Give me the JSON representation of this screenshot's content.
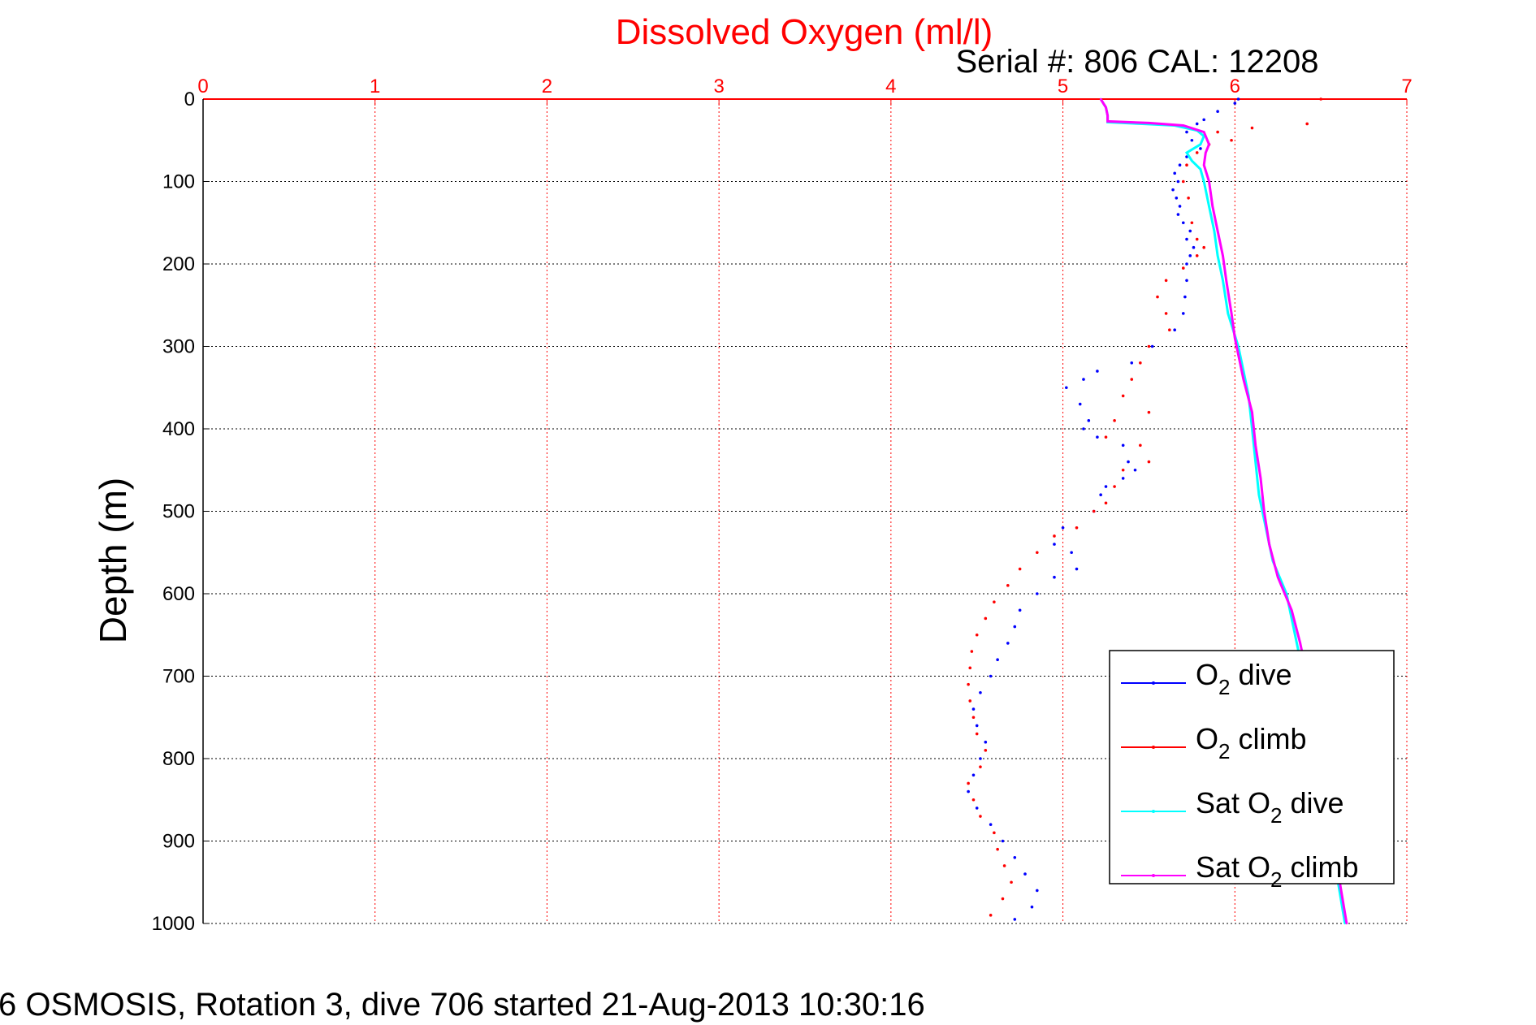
{
  "chart_data": {
    "type": "scatter",
    "title": "Dissolved Oxygen (ml/l)",
    "subtitle": "Serial #: 806  CAL: 12208",
    "xlabel": "",
    "ylabel": "Depth (m)",
    "xlim": [
      0,
      7
    ],
    "ylim": [
      0,
      1000
    ],
    "y_reversed": true,
    "x_axis_position": "top",
    "x_ticks": [
      "0",
      "1",
      "2",
      "3",
      "4",
      "5",
      "6",
      "7"
    ],
    "y_ticks": [
      "0",
      "100",
      "200",
      "300",
      "400",
      "500",
      "600",
      "700",
      "800",
      "900",
      "1000"
    ],
    "grid": true,
    "legend_position": "bottom-right",
    "footer": "6 OSMOSIS, Rotation 3, dive 706 started 21-Aug-2013 10:30:16",
    "colors": {
      "title": "#ff0000",
      "x_ticks": "#ff0000",
      "grid_x": "#ff0000",
      "grid_y": "#000000"
    },
    "series": [
      {
        "name": "O2 dive",
        "legend_label": "O",
        "legend_sub": "2",
        "legend_suffix": " dive",
        "color": "#0000ff",
        "style": "points",
        "points": [
          [
            6.02,
            0
          ],
          [
            6.0,
            5
          ],
          [
            5.9,
            15
          ],
          [
            5.82,
            25
          ],
          [
            5.78,
            30
          ],
          [
            5.72,
            40
          ],
          [
            5.75,
            50
          ],
          [
            5.8,
            60
          ],
          [
            5.72,
            70
          ],
          [
            5.68,
            80
          ],
          [
            5.65,
            90
          ],
          [
            5.67,
            100
          ],
          [
            5.64,
            110
          ],
          [
            5.66,
            120
          ],
          [
            5.68,
            130
          ],
          [
            5.67,
            140
          ],
          [
            5.7,
            150
          ],
          [
            5.74,
            160
          ],
          [
            5.72,
            170
          ],
          [
            5.76,
            180
          ],
          [
            5.74,
            190
          ],
          [
            5.72,
            200
          ],
          [
            5.72,
            220
          ],
          [
            5.71,
            240
          ],
          [
            5.7,
            260
          ],
          [
            5.65,
            280
          ],
          [
            5.52,
            300
          ],
          [
            5.4,
            320
          ],
          [
            5.2,
            330
          ],
          [
            5.12,
            340
          ],
          [
            5.02,
            350
          ],
          [
            5.1,
            370
          ],
          [
            5.15,
            390
          ],
          [
            5.12,
            400
          ],
          [
            5.2,
            410
          ],
          [
            5.35,
            420
          ],
          [
            5.38,
            440
          ],
          [
            5.42,
            450
          ],
          [
            5.35,
            460
          ],
          [
            5.25,
            470
          ],
          [
            5.22,
            480
          ],
          [
            5.18,
            500
          ],
          [
            5.0,
            520
          ],
          [
            4.95,
            540
          ],
          [
            5.05,
            550
          ],
          [
            5.08,
            570
          ],
          [
            4.95,
            580
          ],
          [
            4.85,
            600
          ],
          [
            4.75,
            620
          ],
          [
            4.72,
            640
          ],
          [
            4.68,
            660
          ],
          [
            4.62,
            680
          ],
          [
            4.58,
            700
          ],
          [
            4.52,
            720
          ],
          [
            4.48,
            740
          ],
          [
            4.5,
            760
          ],
          [
            4.55,
            780
          ],
          [
            4.52,
            800
          ],
          [
            4.48,
            820
          ],
          [
            4.45,
            840
          ],
          [
            4.5,
            860
          ],
          [
            4.58,
            880
          ],
          [
            4.65,
            900
          ],
          [
            4.72,
            920
          ],
          [
            4.78,
            940
          ],
          [
            4.85,
            960
          ],
          [
            4.82,
            980
          ],
          [
            4.72,
            995
          ]
        ]
      },
      {
        "name": "O2 climb",
        "legend_label": "O",
        "legend_sub": "2",
        "legend_suffix": " climb",
        "color": "#ff0000",
        "style": "points",
        "points": [
          [
            6.5,
            0
          ],
          [
            6.42,
            30
          ],
          [
            6.1,
            35
          ],
          [
            5.9,
            40
          ],
          [
            5.98,
            50
          ],
          [
            5.85,
            55
          ],
          [
            5.78,
            65
          ],
          [
            5.72,
            80
          ],
          [
            5.7,
            100
          ],
          [
            5.73,
            120
          ],
          [
            5.75,
            150
          ],
          [
            5.78,
            170
          ],
          [
            5.82,
            180
          ],
          [
            5.78,
            190
          ],
          [
            5.7,
            205
          ],
          [
            5.6,
            220
          ],
          [
            5.55,
            240
          ],
          [
            5.6,
            260
          ],
          [
            5.62,
            280
          ],
          [
            5.5,
            300
          ],
          [
            5.45,
            320
          ],
          [
            5.4,
            340
          ],
          [
            5.35,
            360
          ],
          [
            5.5,
            380
          ],
          [
            5.3,
            390
          ],
          [
            5.25,
            410
          ],
          [
            5.45,
            420
          ],
          [
            5.5,
            440
          ],
          [
            5.35,
            450
          ],
          [
            5.3,
            470
          ],
          [
            5.25,
            490
          ],
          [
            5.18,
            500
          ],
          [
            5.08,
            520
          ],
          [
            4.95,
            530
          ],
          [
            4.85,
            550
          ],
          [
            4.75,
            570
          ],
          [
            4.68,
            590
          ],
          [
            4.6,
            610
          ],
          [
            4.55,
            630
          ],
          [
            4.5,
            650
          ],
          [
            4.47,
            670
          ],
          [
            4.46,
            690
          ],
          [
            4.45,
            710
          ],
          [
            4.46,
            730
          ],
          [
            4.48,
            750
          ],
          [
            4.5,
            770
          ],
          [
            4.55,
            790
          ],
          [
            4.52,
            810
          ],
          [
            4.45,
            830
          ],
          [
            4.48,
            850
          ],
          [
            4.52,
            870
          ],
          [
            4.6,
            890
          ],
          [
            4.62,
            910
          ],
          [
            4.66,
            930
          ],
          [
            4.7,
            950
          ],
          [
            4.65,
            970
          ],
          [
            4.58,
            990
          ]
        ]
      },
      {
        "name": "Sat O2 dive",
        "legend_label": "Sat O",
        "legend_sub": "2",
        "legend_suffix": " dive",
        "color": "#00ffff",
        "style": "line",
        "points": [
          [
            5.22,
            0
          ],
          [
            5.25,
            10
          ],
          [
            5.26,
            20
          ],
          [
            5.26,
            28
          ],
          [
            5.45,
            30
          ],
          [
            5.65,
            32
          ],
          [
            5.78,
            38
          ],
          [
            5.82,
            45
          ],
          [
            5.8,
            55
          ],
          [
            5.72,
            65
          ],
          [
            5.75,
            75
          ],
          [
            5.8,
            85
          ],
          [
            5.82,
            100
          ],
          [
            5.85,
            130
          ],
          [
            5.88,
            160
          ],
          [
            5.9,
            190
          ],
          [
            5.93,
            220
          ],
          [
            5.96,
            260
          ],
          [
            6.02,
            300
          ],
          [
            6.05,
            330
          ],
          [
            6.08,
            360
          ],
          [
            6.1,
            400
          ],
          [
            6.12,
            440
          ],
          [
            6.14,
            480
          ],
          [
            6.18,
            520
          ],
          [
            6.22,
            560
          ],
          [
            6.3,
            600
          ],
          [
            6.35,
            650
          ],
          [
            6.4,
            700
          ],
          [
            6.45,
            750
          ],
          [
            6.48,
            800
          ],
          [
            6.52,
            850
          ],
          [
            6.56,
            900
          ],
          [
            6.6,
            950
          ],
          [
            6.64,
            1000
          ]
        ]
      },
      {
        "name": "Sat O2 climb",
        "legend_label": "Sat O",
        "legend_sub": "2",
        "legend_suffix": " climb",
        "color": "#ff00ff",
        "style": "line",
        "points": [
          [
            5.22,
            0
          ],
          [
            5.25,
            10
          ],
          [
            5.26,
            20
          ],
          [
            5.26,
            27
          ],
          [
            5.5,
            29
          ],
          [
            5.7,
            32
          ],
          [
            5.82,
            40
          ],
          [
            5.85,
            55
          ],
          [
            5.83,
            65
          ],
          [
            5.82,
            80
          ],
          [
            5.85,
            100
          ],
          [
            5.87,
            130
          ],
          [
            5.9,
            160
          ],
          [
            5.93,
            190
          ],
          [
            5.95,
            220
          ],
          [
            5.98,
            260
          ],
          [
            6.0,
            290
          ],
          [
            6.02,
            310
          ],
          [
            6.05,
            340
          ],
          [
            6.1,
            380
          ],
          [
            6.12,
            420
          ],
          [
            6.15,
            460
          ],
          [
            6.17,
            500
          ],
          [
            6.2,
            540
          ],
          [
            6.25,
            580
          ],
          [
            6.33,
            620
          ],
          [
            6.38,
            660
          ],
          [
            6.42,
            700
          ],
          [
            6.45,
            750
          ],
          [
            6.49,
            800
          ],
          [
            6.53,
            850
          ],
          [
            6.57,
            900
          ],
          [
            6.61,
            950
          ],
          [
            6.65,
            1000
          ]
        ]
      }
    ]
  }
}
